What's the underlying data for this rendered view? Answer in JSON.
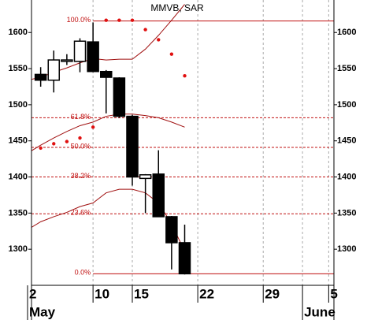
{
  "chart_data": {
    "type": "candlestick",
    "title": "MMVB, SAR",
    "x": [
      1,
      2,
      3,
      4,
      5,
      6,
      7,
      8,
      9,
      10,
      11,
      12
    ],
    "open": [
      1542,
      1534,
      1560,
      1560,
      1587,
      1546,
      1537,
      1484,
      1398,
      1404,
      1345,
      1309
    ],
    "high": [
      1552,
      1575,
      1570,
      1592,
      1614,
      1548,
      1538,
      1486,
      1404,
      1437,
      1346,
      1334
    ],
    "low": [
      1525,
      1517,
      1555,
      1545,
      1545,
      1488,
      1482,
      1388,
      1350,
      1345,
      1272,
      1265
    ],
    "close": [
      1534,
      1562,
      1562,
      1588,
      1546,
      1538,
      1484,
      1400,
      1403,
      1345,
      1309,
      1266
    ],
    "up_color": "#ffffff",
    "down_color": "#000000",
    "sar": {
      "color": "#e01010",
      "values": [
        1440,
        1446,
        1449,
        1454,
        1469,
        1617,
        1617,
        1617,
        1604,
        1590,
        1570,
        1540
      ]
    },
    "bands": {
      "color": "#a01010",
      "x": [
        0,
        1,
        2,
        3,
        4,
        5,
        6,
        7,
        8,
        9,
        10,
        11,
        12
      ],
      "series": [
        {
          "values": [
            1534,
            1538,
            1545,
            1551,
            1558,
            1564,
            1562,
            1563,
            1563,
            1577,
            1596,
            1617,
            1639
          ]
        },
        {
          "values": [
            1433,
            1444,
            1454,
            1463,
            1471,
            1476,
            1484,
            1487,
            1487,
            1485,
            1482,
            1476,
            1469
          ]
        },
        {
          "values": [
            1327,
            1338,
            1345,
            1351,
            1359,
            1364,
            1378,
            1383,
            1383,
            1378,
            1364,
            1335,
            1297
          ]
        }
      ]
    },
    "fib": {
      "color": "#c01010",
      "start_x": 5,
      "levels": [
        {
          "label": "100.0%",
          "value": 1616
        },
        {
          "label": "61.8%",
          "value": 1482
        },
        {
          "label": "50.0%",
          "value": 1441
        },
        {
          "label": "38.2%",
          "value": 1400
        },
        {
          "label": "23.6%",
          "value": 1349
        },
        {
          "label": "0.0%",
          "value": 1266
        }
      ]
    },
    "xlim": [
      0.3,
      23.4
    ],
    "xticks": [
      {
        "value": 0,
        "label": "2"
      },
      {
        "value": 5,
        "label": "10"
      },
      {
        "value": 8,
        "label": "15"
      },
      {
        "value": 13,
        "label": "22"
      },
      {
        "value": 18,
        "label": "29"
      },
      {
        "value": 23,
        "label": "5"
      }
    ],
    "month_ticks": [
      {
        "value": 0,
        "label": "May"
      },
      {
        "value": 21,
        "label": "June"
      }
    ],
    "ylim": [
      1250,
      1645
    ],
    "yticks": [
      1300,
      1350,
      1400,
      1450,
      1500,
      1550,
      1600
    ],
    "grid": true
  }
}
